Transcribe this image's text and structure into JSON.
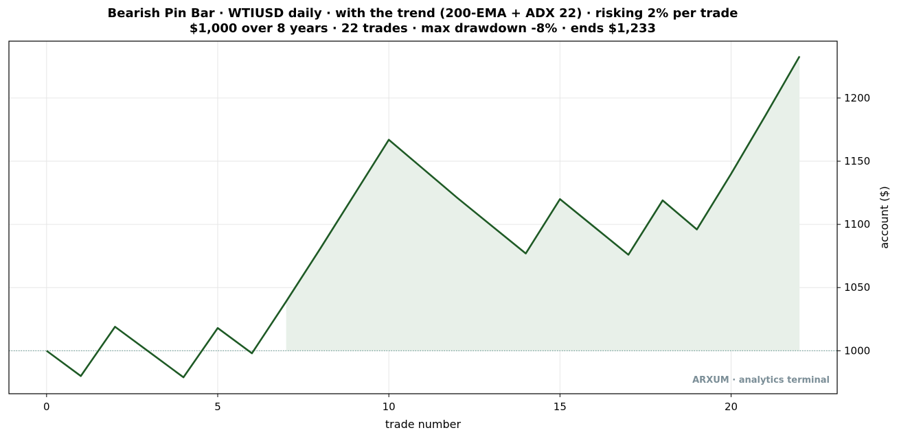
{
  "chart_data": {
    "type": "line",
    "title": "Bearish Pin Bar · WTIUSD daily · with the trend (200-EMA + ADX 22) · risking 2% per trade",
    "subtitle": "$1,000 over 8 years · 22 trades · max drawdown -8% · ends $1,233",
    "xlabel": "trade number",
    "ylabel": "account ($)",
    "x": [
      0,
      1,
      2,
      3,
      4,
      5,
      6,
      7,
      8,
      9,
      10,
      11,
      12,
      13,
      14,
      15,
      16,
      17,
      18,
      19,
      20,
      21,
      22
    ],
    "series": [
      {
        "values": [
          1000,
          980,
          1019,
          999,
          979,
          1018,
          998,
          1039,
          1081,
          1124,
          1167,
          1144,
          1121,
          1099,
          1077,
          1120,
          1098,
          1076,
          1119,
          1096,
          1140,
          1186,
          1233
        ]
      }
    ],
    "baseline": 1000,
    "fill_above_baseline_from_x": 7,
    "xlim": [
      -1.1,
      23.1
    ],
    "ylim": [
      966,
      1245
    ],
    "xticks": [
      0,
      5,
      10,
      15,
      20
    ],
    "yticks": [
      1000,
      1050,
      1100,
      1150,
      1200
    ],
    "yaxis_side": "right",
    "grid": true,
    "legend": "none",
    "colors": {
      "line": "#1e5a25",
      "fill": "#e8f0e9",
      "baseline": "#7aa6a0",
      "grid": "#e6e6e6",
      "watermark": "#7b8e97"
    }
  },
  "watermark": "ARXUM · analytics terminal"
}
